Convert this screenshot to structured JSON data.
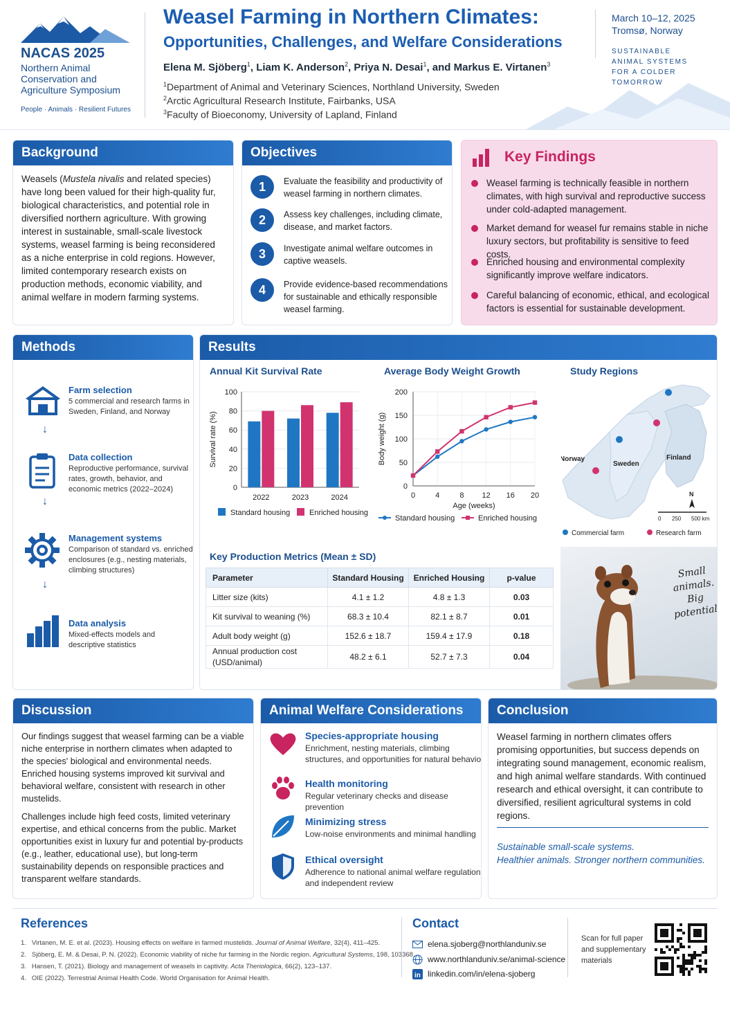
{
  "header": {
    "logo_title": "NACAS 2025",
    "logo_subtitle": "Northern Animal Conservation and Agriculture Symposium",
    "logo_tagline": "People · Animals · Resilient Futures",
    "title_line1": "Weasel Farming in Northern Climates:",
    "title_line2": "Opportunities, Challenges, and Welfare Considerations",
    "authors": [
      {
        "name": "Elena M. Sjöberg",
        "aff": "1"
      },
      {
        "name": "Liam K. Anderson",
        "aff": "2"
      },
      {
        "name": "Priya N. Desai",
        "aff": "1"
      },
      {
        "name": "Markus E. Virtanen",
        "aff": "3"
      }
    ],
    "affiliations": [
      {
        "num": "1",
        "text": "Department of Animal and Veterinary Sciences, Northland University, Sweden"
      },
      {
        "num": "2",
        "text": "Arctic Agricultural Research Institute, Fairbanks, USA"
      },
      {
        "num": "3",
        "text": "Faculty of Bioeconomy, University of Lapland, Finland"
      }
    ],
    "date": "March 10–12, 2025",
    "location": "Tromsø, Norway",
    "tagline": [
      "SUSTAINABLE",
      "ANIMAL SYSTEMS",
      "FOR A COLDER TOMORROW"
    ]
  },
  "background": {
    "title": "Background",
    "text_pre": "Weasels (",
    "text_italic": "Mustela nivalis",
    "text_post": " and related species) have long been valued for their high-quality fur, biological characteristics, and potential role in diversified northern agriculture. With growing interest in sustainable, small-scale livestock systems, weasel farming is being reconsidered as a niche enterprise in cold regions. However, limited contemporary research exists on production methods, economic viability, and animal welfare in modern farming systems."
  },
  "objectives": {
    "title": "Objectives",
    "items": [
      {
        "num": "1",
        "text": "Evaluate the feasibility and productivity of weasel farming in northern climates."
      },
      {
        "num": "2",
        "text": "Assess key challenges, including climate, disease, and market factors."
      },
      {
        "num": "3",
        "text": "Investigate animal welfare outcomes in captive weasels."
      },
      {
        "num": "4",
        "text": "Provide evidence-based recommendations for sustainable and ethically responsible weasel farming."
      }
    ]
  },
  "key_findings": {
    "title": "Key Findings",
    "items": [
      "Weasel farming is technically feasible in northern climates, with high survival and reproductive success under cold-adapted management.",
      "Market demand for weasel fur remains stable in niche luxury sectors, but profitability is sensitive to feed costs.",
      "Enriched housing and environmental complexity significantly improve welfare indicators.",
      "Careful balancing of economic, ethical, and ecological factors is essential for sustainable development."
    ]
  },
  "methods": {
    "title": "Methods",
    "items": [
      {
        "icon": "barn-icon",
        "title": "Farm selection",
        "text": "5 commercial and research farms in Sweden, Finland, and Norway"
      },
      {
        "icon": "clipboard-icon",
        "title": "Data collection",
        "text": "Reproductive performance, survival rates, growth, behavior, and economic metrics (2022–2024)"
      },
      {
        "icon": "gear-icon",
        "title": "Management systems",
        "text": "Comparison of standard vs. enriched enclosures (e.g., nesting materials, climbing structures)"
      },
      {
        "icon": "bar-chart-icon",
        "title": "Data analysis",
        "text": "Mixed-effects models and descriptive statistics"
      }
    ]
  },
  "results": {
    "title": "Results",
    "map": {
      "title": "Study Regions",
      "labels": [
        "Norway",
        "Sweden",
        "Finland"
      ],
      "scale": [
        "0",
        "250",
        "500 km"
      ],
      "north": "N",
      "legend": [
        "Commercial farm",
        "Research farm"
      ]
    },
    "table": {
      "title": "Key Production Metrics (Mean ± SD)",
      "headers": [
        "Parameter",
        "Standard Housing",
        "Enriched Housing",
        "p-value"
      ],
      "rows": [
        [
          "Litter size (kits)",
          "4.1 ± 1.2",
          "4.8 ± 1.3",
          "0.03"
        ],
        [
          "Kit survival to weaning (%)",
          "68.3 ± 10.4",
          "82.1 ± 8.7",
          "0.01"
        ],
        [
          "Adult body weight (g)",
          "152.6 ± 18.7",
          "159.4 ± 17.9",
          "0.18"
        ],
        [
          "Annual production cost (USD/animal)",
          "48.2 ± 6.1",
          "52.7 ± 7.3",
          "0.04"
        ]
      ]
    },
    "photo_caption": [
      "Small",
      "animals.",
      "Big",
      "potential."
    ]
  },
  "discussion": {
    "title": "Discussion",
    "paragraphs": [
      "Our findings suggest that weasel farming can be a viable niche enterprise in northern climates when adapted to the species' biological and environmental needs. Enriched housing systems improved kit survival and behavioral welfare, consistent with research in other mustelids.",
      "Challenges include high feed costs, limited veterinary expertise, and ethical concerns from the public. Market opportunities exist in luxury fur and potential by-products (e.g., leather, educational use), but long-term sustainability depends on responsible practices and transparent welfare standards."
    ]
  },
  "welfare": {
    "title": "Animal Welfare Considerations",
    "items": [
      {
        "icon": "heart-icon",
        "title": "Species-appropriate housing",
        "text": "Enrichment, nesting materials, climbing structures, and opportunities for natural behavior"
      },
      {
        "icon": "paw-icon",
        "title": "Health monitoring",
        "text": "Regular veterinary checks and disease prevention"
      },
      {
        "icon": "leaf-icon",
        "title": "Minimizing stress",
        "text": "Low-noise environments and minimal handling"
      },
      {
        "icon": "shield-icon",
        "title": "Ethical oversight",
        "text": "Adherence to national animal welfare regulations and independent review"
      }
    ]
  },
  "conclusion": {
    "title": "Conclusion",
    "text": "Weasel farming in northern climates offers promising opportunities, but success depends on integrating sound management, economic realism, and high animal welfare standards. With continued research and ethical oversight, it can contribute to diversified, resilient agricultural systems in cold regions.",
    "tagline1": "Sustainable small-scale systems.",
    "tagline2": "Healthier animals. Stronger northern communities."
  },
  "references": {
    "title": "References",
    "items": [
      {
        "num": "1.",
        "pre": "Virtanen, M. E. et al. (2023). Housing effects on welfare in farmed mustelids. ",
        "journal": "Journal of Animal Welfare",
        "post": ", 32(4), 411–425."
      },
      {
        "num": "2.",
        "pre": "Sjöberg, E. M. & Desai, P. N. (2022). Economic viability of niche fur farming in the Nordic region. ",
        "journal": "Agricultural Systems",
        "post": ", 198, 103368."
      },
      {
        "num": "3.",
        "pre": "Hansen, T. (2021). Biology and management of weasels in captivity. ",
        "journal": "Acta Theriologica",
        "post": ", 66(2), 123–137."
      },
      {
        "num": "4.",
        "pre": "OIE (2022). Terrestrial Animal Health Code. World Organisation for Animal Health.",
        "journal": "",
        "post": ""
      }
    ]
  },
  "contact": {
    "title": "Contact",
    "email": "elena.sjoberg@northlanduniv.se",
    "web": "www.northlanduniv.se/animal-science",
    "linkedin": "linkedin.com/in/elena-sjoberg",
    "qr_text": "Scan for full paper and supplementary materials"
  },
  "colors": {
    "primary": "#1b5ba8",
    "accent": "#c8245f",
    "kf_bg": "#f7dbeb"
  },
  "chart_data": [
    {
      "type": "bar",
      "title": "Annual Kit Survival Rate",
      "categories": [
        "2022",
        "2023",
        "2024"
      ],
      "series": [
        {
          "name": "Standard housing",
          "values": [
            69,
            72,
            78
          ],
          "color": "#1f77c4"
        },
        {
          "name": "Enriched housing",
          "values": [
            80,
            86,
            89
          ],
          "color": "#d1336f"
        }
      ],
      "ylabel": "Survival rate (%)",
      "ylim": [
        0,
        100
      ],
      "yticks": [
        0,
        20,
        40,
        60,
        80,
        100
      ],
      "legend": "bottom"
    },
    {
      "type": "line",
      "title": "Average Body Weight Growth",
      "x": [
        0,
        4,
        8,
        12,
        16,
        20
      ],
      "series": [
        {
          "name": "Standard housing",
          "values": [
            22,
            62,
            95,
            120,
            136,
            146
          ],
          "color": "#1f77c4"
        },
        {
          "name": "Enriched housing",
          "values": [
            22,
            73,
            116,
            146,
            167,
            177
          ],
          "color": "#d1336f"
        }
      ],
      "xlabel": "Age (weeks)",
      "ylabel": "Body weight (g)",
      "xlim": [
        0,
        20
      ],
      "ylim": [
        0,
        200
      ],
      "xticks": [
        0,
        4,
        8,
        12,
        16,
        20
      ],
      "yticks": [
        0,
        50,
        100,
        150,
        200
      ],
      "legend": "bottom"
    }
  ]
}
